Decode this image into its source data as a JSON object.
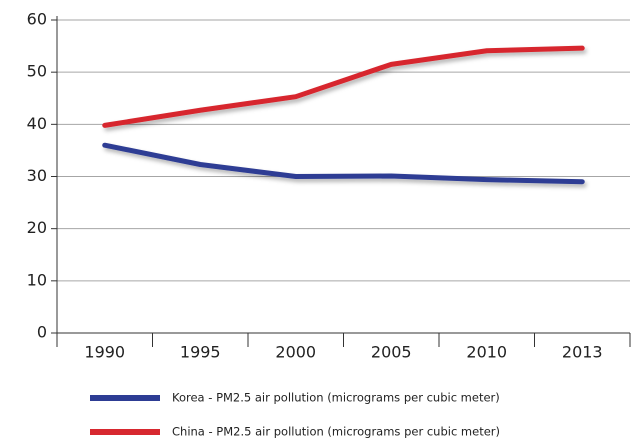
{
  "chart_data": {
    "type": "line",
    "categories": [
      "1990",
      "1995",
      "2000",
      "2005",
      "2010",
      "2013"
    ],
    "series": [
      {
        "name": "Korea - PM2.5 air pollution (micrograms per cubic meter)",
        "color": "#2d3c94",
        "values": [
          36,
          32.3,
          30,
          30.1,
          29.4,
          29
        ]
      },
      {
        "name": "China - PM2.5 air pollution (micrograms per cubic meter)",
        "color": "#d7282f",
        "values": [
          39.8,
          42.7,
          45.3,
          51.5,
          54.1,
          54.6
        ]
      }
    ],
    "ylim": [
      0,
      60
    ],
    "yticks": [
      0,
      10,
      20,
      30,
      40,
      50,
      60
    ],
    "grid": true,
    "legend": "bottom"
  }
}
